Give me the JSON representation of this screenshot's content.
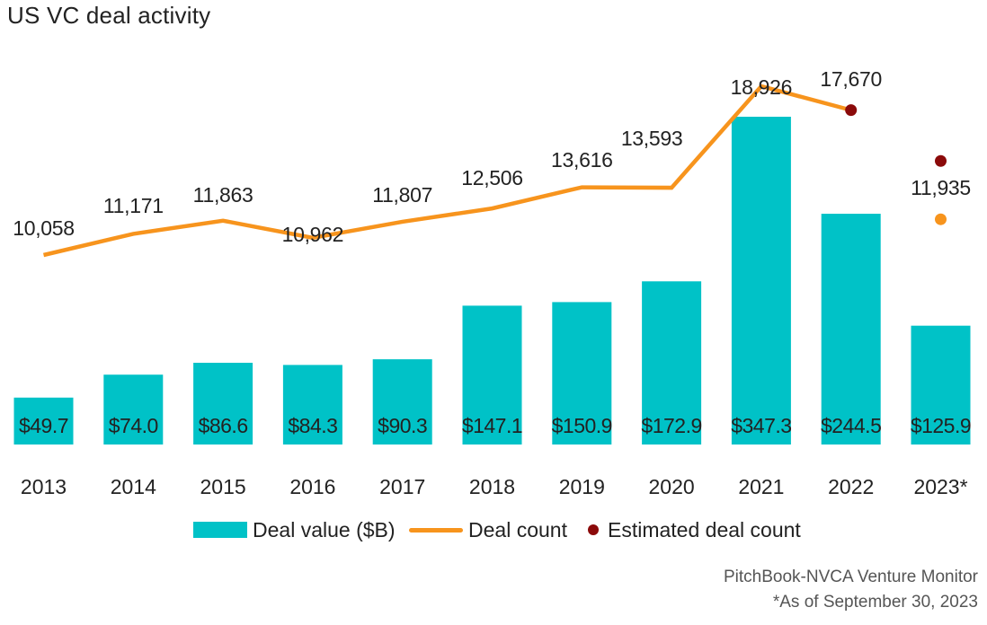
{
  "chart_data": {
    "type": "bar",
    "title": "US VC deal activity",
    "categories": [
      "2013",
      "2014",
      "2015",
      "2016",
      "2017",
      "2018",
      "2019",
      "2020",
      "2021",
      "2022",
      "2023*"
    ],
    "series": [
      {
        "name": "Deal value ($B)",
        "type": "bar",
        "color": "#00c2c7",
        "values": [
          49.7,
          74.0,
          86.6,
          84.3,
          90.3,
          147.1,
          150.9,
          172.9,
          347.3,
          244.5,
          125.9
        ],
        "labels": [
          "$49.7",
          "$74.0",
          "$86.6",
          "$84.3",
          "$90.3",
          "$147.1",
          "$150.9",
          "$172.9",
          "$347.3",
          "$244.5",
          "$125.9"
        ]
      },
      {
        "name": "Deal count",
        "type": "line",
        "color": "#f7941d",
        "values": [
          10058,
          11171,
          11863,
          10962,
          11807,
          12506,
          13616,
          13593,
          18926,
          17670,
          11935
        ],
        "labels": [
          "10,058",
          "11,171",
          "11,863",
          "10,962",
          "11,807",
          "12,506",
          "13,616",
          "13,593",
          "18,926",
          "17,670",
          "11,935"
        ]
      },
      {
        "name": "Estimated deal count",
        "type": "scatter",
        "color": "#8b0a0a",
        "categories": [
          "2022",
          "2023*"
        ],
        "values": [
          17670,
          15000
        ]
      }
    ],
    "legend_position": "bottom-center",
    "grid": false
  },
  "footer": {
    "source": "PitchBook-NVCA Venture Monitor",
    "note": "*As of September 30, 2023"
  }
}
